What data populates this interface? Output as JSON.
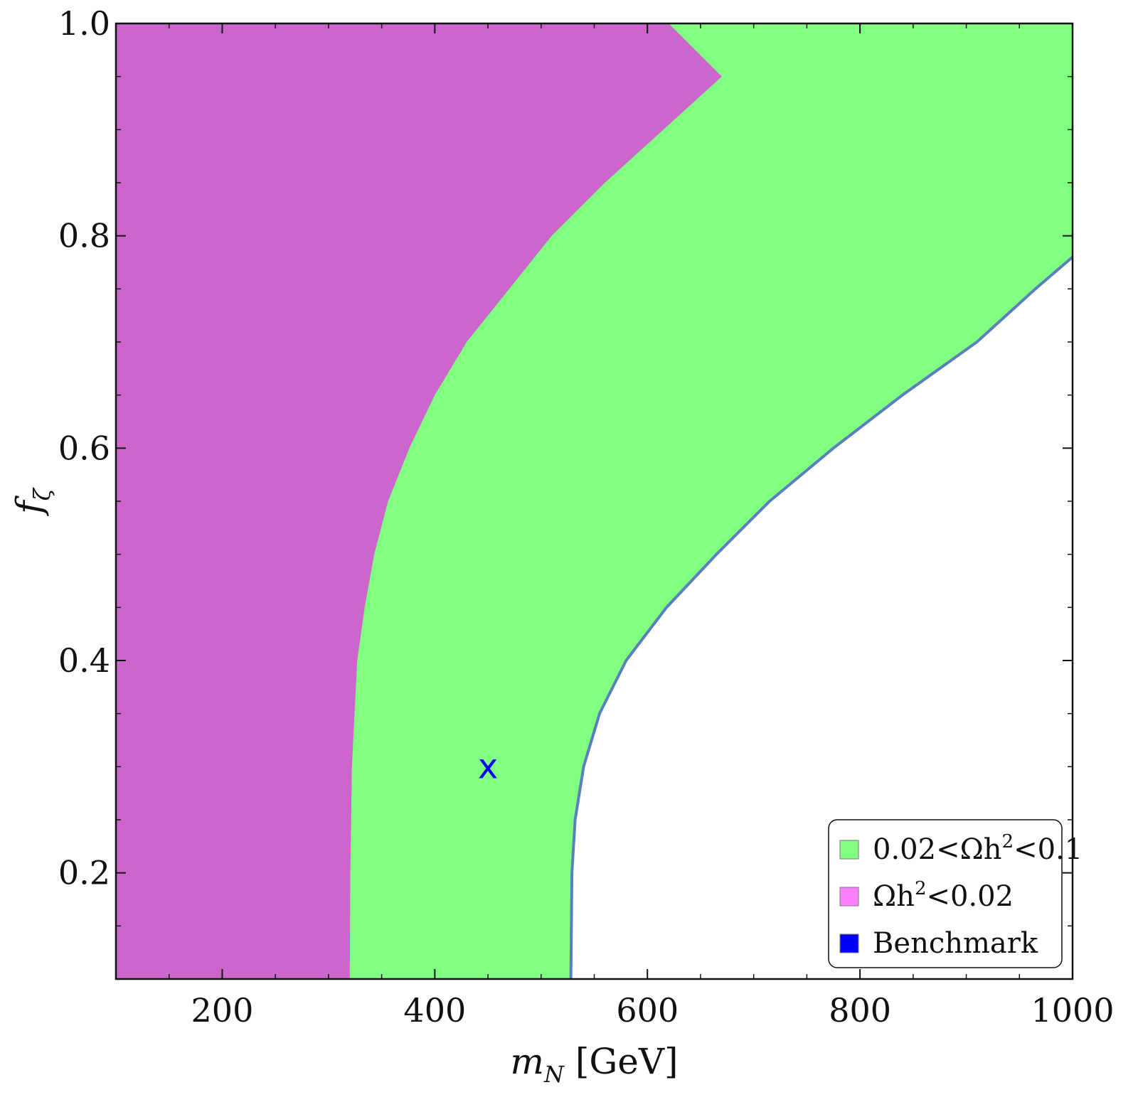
{
  "chart_data": {
    "type": "area",
    "xlabel": {
      "main": "m",
      "sub": "N",
      "unit": " [GeV]"
    },
    "ylabel": {
      "main": "f",
      "sub": "ζ"
    },
    "xlim": [
      100,
      1000
    ],
    "ylim": [
      0.1,
      1.0
    ],
    "xticks": [
      200,
      400,
      600,
      800,
      1000
    ],
    "xtick_labels": [
      "200",
      "400",
      "600",
      "800",
      "1000"
    ],
    "yticks": [
      0.2,
      0.4,
      0.6,
      0.8,
      1.0
    ],
    "ytick_labels": [
      "0.2",
      "0.4",
      "0.6",
      "0.8",
      "1.0"
    ],
    "x_minor_step": 50,
    "y_minor_step": 0.05,
    "grid": false,
    "legend_position": "bottom-right",
    "regions": [
      {
        "name": "Ωh²<0.02",
        "color": "#cc66cc",
        "legend_swatch_color": "#ff80ff",
        "boundary": [
          [
            320,
            0.1
          ],
          [
            320.5,
            0.2
          ],
          [
            322,
            0.3
          ],
          [
            327,
            0.4
          ],
          [
            334,
            0.45
          ],
          [
            343,
            0.5
          ],
          [
            356,
            0.55
          ],
          [
            376,
            0.6
          ],
          [
            400,
            0.65
          ],
          [
            430,
            0.7
          ],
          [
            470,
            0.75
          ],
          [
            510,
            0.8
          ],
          [
            560,
            0.85
          ],
          [
            615,
            0.9
          ],
          [
            670,
            0.95
          ],
          [
            620,
            1.0
          ]
        ]
      },
      {
        "name": "0.02<Ωh²<0.1",
        "color": "#80ff80",
        "boundary": [
          [
            528,
            0.1
          ],
          [
            529,
            0.2
          ],
          [
            532,
            0.25
          ],
          [
            540,
            0.3
          ],
          [
            555,
            0.35
          ],
          [
            580,
            0.4
          ],
          [
            618,
            0.45
          ],
          [
            665,
            0.5
          ],
          [
            715,
            0.55
          ],
          [
            775,
            0.6
          ],
          [
            840,
            0.65
          ],
          [
            910,
            0.7
          ],
          [
            965,
            0.75
          ],
          [
            1000,
            0.78
          ]
        ],
        "boundary_line_color": "#5a7fbf"
      }
    ],
    "points": [
      {
        "name": "Benchmark",
        "x": 450,
        "y": 0.3,
        "marker": "x",
        "color": "#0000ff"
      }
    ],
    "legend": [
      {
        "label_parts": [
          "0.02<Ωh",
          "2",
          "<0.1"
        ],
        "color": "#80ff80"
      },
      {
        "label_parts": [
          "Ωh",
          "2",
          "<0.02"
        ],
        "color": "#ff80ff"
      },
      {
        "label_parts": [
          "Benchmark",
          "",
          ""
        ],
        "color": "#0000ff"
      }
    ],
    "marker_text": "x"
  }
}
